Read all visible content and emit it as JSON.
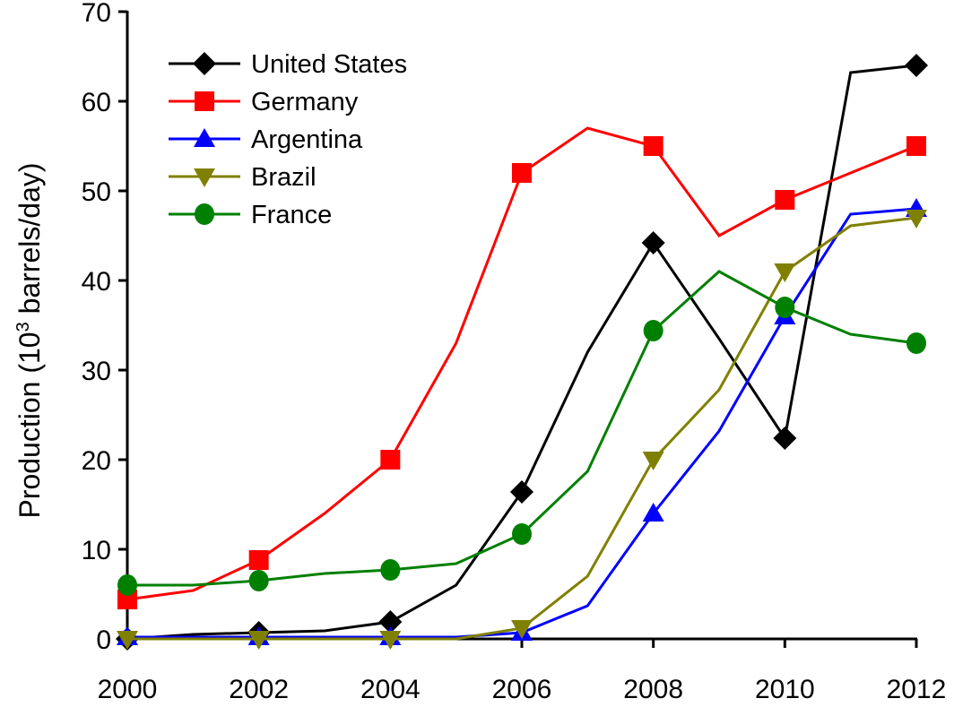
{
  "chart_data": {
    "type": "line",
    "title": "",
    "xlabel": "",
    "ylabel": "Production (10",
    "ylabel_exp": "3",
    "ylabel_rest": " barrels/day)",
    "xlim": [
      2000,
      2012
    ],
    "ylim": [
      0,
      70
    ],
    "x_ticks": [
      2000,
      2002,
      2004,
      2006,
      2008,
      2010,
      2012
    ],
    "y_ticks": [
      0,
      10,
      20,
      30,
      40,
      50,
      60,
      70
    ],
    "grid": false,
    "legend_position": "top-left",
    "x": [
      2000,
      2001,
      2002,
      2003,
      2004,
      2005,
      2006,
      2007,
      2008,
      2009,
      2010,
      2011,
      2012
    ],
    "series": [
      {
        "name": "United States",
        "color": "#000000",
        "marker": "diamond",
        "values": [
          0,
          0.5,
          0.7,
          0.9,
          1.9,
          6,
          16.4,
          32,
          44.2,
          33.5,
          22.4,
          63.2,
          64
        ]
      },
      {
        "name": "Germany",
        "color": "#ff0000",
        "marker": "square",
        "values": [
          4.4,
          5.4,
          8.8,
          14,
          20,
          33,
          52,
          57,
          55,
          45,
          49,
          52,
          55
        ]
      },
      {
        "name": "Argentina",
        "color": "#0000ff",
        "marker": "triangle-up",
        "values": [
          0.2,
          0.2,
          0.2,
          0.2,
          0.2,
          0.2,
          0.7,
          3.7,
          14,
          23.2,
          36,
          47.4,
          48
        ]
      },
      {
        "name": "Brazil",
        "color": "#808000",
        "marker": "triangle-down",
        "values": [
          0,
          0,
          0,
          0,
          0,
          0,
          1.2,
          7,
          20,
          27.8,
          41,
          46.1,
          47
        ]
      },
      {
        "name": "France",
        "color": "#008000",
        "marker": "circle",
        "values": [
          6,
          6,
          6.5,
          7.3,
          7.7,
          8.4,
          11.7,
          18.7,
          34.4,
          41,
          37,
          34,
          33
        ]
      }
    ]
  }
}
